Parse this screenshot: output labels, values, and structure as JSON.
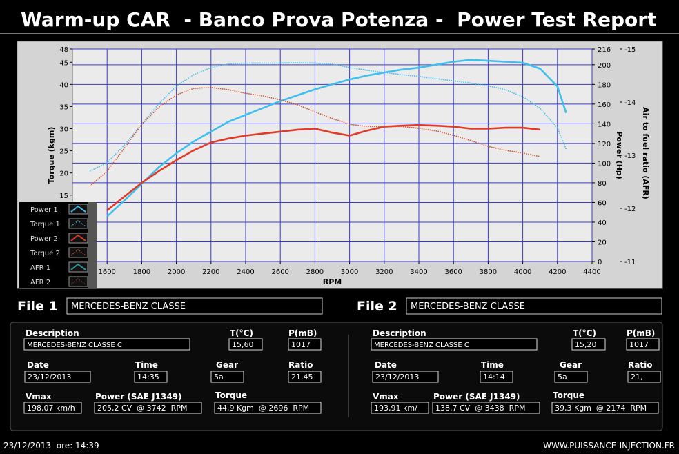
{
  "header": {
    "title": "Warm-up CAR  - Banco Prova Potenza -  Power Test Report"
  },
  "chart_data": {
    "type": "line",
    "x_label": "RPM",
    "y_label": "Torque (kgm)",
    "y2_label": "Power (Hp)",
    "y3_label": "Air to fuel ratio (AFR)",
    "x": [
      1500,
      1600,
      1700,
      1800,
      1900,
      2000,
      2100,
      2200,
      2300,
      2400,
      2500,
      2600,
      2700,
      2800,
      2900,
      3000,
      3100,
      3200,
      3300,
      3400,
      3500,
      3600,
      3700,
      3800,
      3900,
      4000,
      4100,
      4200,
      4250
    ],
    "xlim": [
      1400,
      4400
    ],
    "xticks": [
      1600,
      1800,
      2000,
      2200,
      2400,
      2600,
      2800,
      3000,
      3200,
      3400,
      3600,
      3800,
      4000,
      4200,
      4400
    ],
    "ylim": [
      0,
      48
    ],
    "yticks": [
      15,
      20,
      25,
      30,
      35,
      40,
      45,
      48
    ],
    "y2lim": [
      0,
      216
    ],
    "y2ticks": [
      0,
      20,
      40,
      60,
      80,
      100,
      120,
      140,
      160,
      180,
      200,
      216
    ],
    "y3lim": [
      -11,
      -15
    ],
    "y3ticks": [
      -15,
      -14,
      -13,
      -12,
      -11
    ],
    "grid": true,
    "legend": "lower left",
    "series": [
      {
        "name": "Power 1",
        "color": "#3fbfee",
        "axis": "y2",
        "line_style": "solid",
        "values": [
          null,
          46,
          62,
          79,
          96,
          110,
          122,
          132,
          142,
          149,
          156,
          163,
          169,
          175,
          180,
          185,
          189,
          192,
          195,
          197,
          200,
          203,
          205,
          204,
          203,
          202,
          196,
          178,
          151
        ]
      },
      {
        "name": "Torque 1",
        "color": "#3fbfee",
        "line_style": "dotted",
        "values": [
          20.4,
          22.3,
          26.3,
          31.0,
          35.7,
          39.6,
          42.2,
          43.8,
          44.6,
          44.8,
          44.8,
          44.8,
          44.9,
          44.8,
          44.6,
          43.8,
          43.2,
          42.7,
          42.2,
          41.8,
          41.3,
          40.8,
          40.3,
          39.7,
          38.8,
          37.2,
          34.6,
          30.2,
          25.4
        ]
      },
      {
        "name": "Power 2",
        "color": "#e03a28",
        "axis": "y2",
        "line_style": "solid",
        "values": [
          null,
          52,
          66,
          80,
          92,
          103,
          113,
          121,
          125,
          128,
          130,
          132,
          134,
          135,
          131,
          128,
          133,
          137,
          138,
          138.7,
          138,
          137,
          135,
          135,
          136,
          136,
          134,
          null,
          null
        ]
      },
      {
        "name": "Torque 2",
        "color": "#d0502c",
        "line_style": "dotted",
        "values": [
          17.0,
          20.4,
          25.6,
          31.0,
          34.9,
          37.6,
          39.1,
          39.3,
          38.8,
          38.0,
          37.4,
          36.5,
          35.4,
          33.8,
          32.3,
          31.0,
          30.5,
          30.4,
          30.5,
          30.1,
          29.5,
          28.5,
          27.3,
          26.0,
          25.1,
          24.5,
          23.7,
          null,
          null
        ]
      },
      {
        "name": "AFR 1",
        "color": "#2a9a9a",
        "axis": "y3",
        "line_style": "solid",
        "values": [
          null,
          null,
          null,
          null,
          null,
          null,
          null,
          null,
          null,
          null,
          null,
          null,
          null,
          null,
          null,
          null,
          null,
          null,
          null,
          null,
          null,
          null,
          null,
          null,
          null,
          null,
          null,
          null,
          null
        ]
      },
      {
        "name": "AFR 2",
        "color": "#7a3a24",
        "axis": "y3",
        "line_style": "dotted",
        "values": [
          null,
          null,
          null,
          null,
          null,
          null,
          null,
          null,
          null,
          null,
          null,
          null,
          null,
          null,
          null,
          null,
          null,
          null,
          null,
          null,
          null,
          null,
          null,
          null,
          null,
          null,
          null,
          null,
          null
        ]
      }
    ]
  },
  "files": [
    {
      "label": "File 1",
      "name": "MERCEDES-BENZ CLASSE",
      "fields": [
        {
          "label": "Description",
          "value": "MERCEDES-BENZ CLASSE C"
        },
        {
          "label": "T(°C)",
          "value": "15,60"
        },
        {
          "label": "P(mB)",
          "value": "1017"
        },
        {
          "label": "Date",
          "value": "23/12/2013"
        },
        {
          "label": "Time",
          "value": "14:35"
        },
        {
          "label": "Gear",
          "value": "5a"
        },
        {
          "label": "Ratio",
          "value": "21,45"
        },
        {
          "label": "Vmax",
          "value": "198,07 km/h"
        },
        {
          "label": "Power (SAE J1349)",
          "value": "205,2 CV  @ 3742  RPM"
        },
        {
          "label": "Torque",
          "value": "44,9 Kgm  @ 2696  RPM"
        }
      ]
    },
    {
      "label": "File 2",
      "name": "MERCEDES-BENZ CLASSE",
      "fields": [
        {
          "label": "Description",
          "value": "MERCEDES-BENZ CLASSE C"
        },
        {
          "label": "T(°C)",
          "value": "15,20"
        },
        {
          "label": "P(mB)",
          "value": "1017"
        },
        {
          "label": "Date",
          "value": "23/12/2013"
        },
        {
          "label": "Time",
          "value": "14:14"
        },
        {
          "label": "Gear",
          "value": "5a"
        },
        {
          "label": "Ratio",
          "value": "21,"
        },
        {
          "label": "Vmax",
          "value": "193,91 km/"
        },
        {
          "label": "Power (SAE J1349)",
          "value": "138,7 CV  @ 3438  RPM"
        },
        {
          "label": "Torque",
          "value": "39,3 Kgm  @ 2174  RPM"
        }
      ]
    }
  ],
  "footer": {
    "timestamp": "23/12/2013  ore: 14:39",
    "website": "WWW.PUISSANCE-INJECTION.FR"
  }
}
